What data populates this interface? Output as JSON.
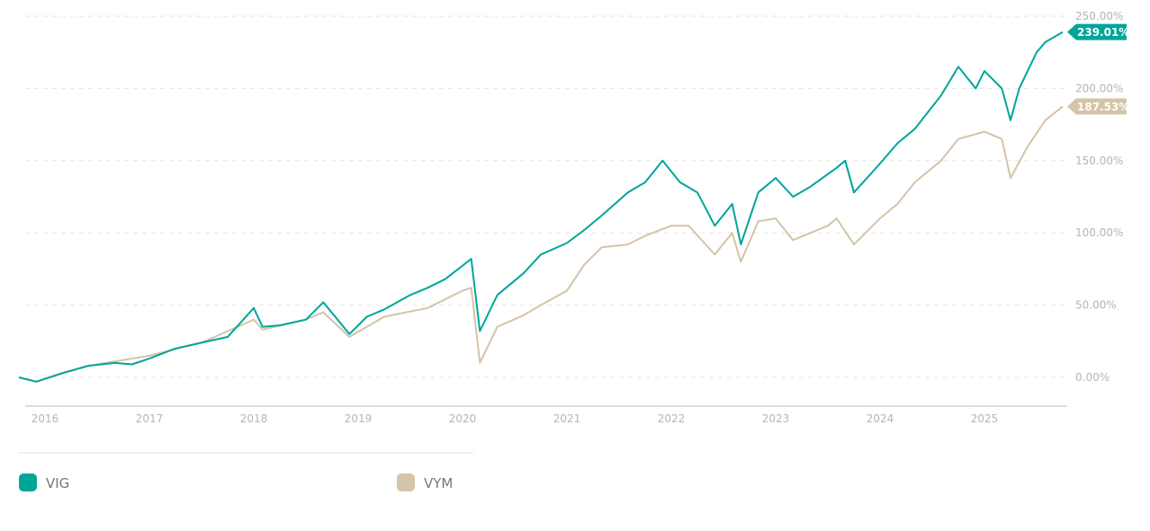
{
  "chart_data": {
    "type": "line",
    "title": "",
    "xlabel": "",
    "ylabel": "",
    "y_unit": "%",
    "ylim": [
      0,
      250
    ],
    "yticks": [
      "0.00%",
      "50.00%",
      "100.00%",
      "150.00%",
      "200.00%",
      "250.00%"
    ],
    "ytick_values": [
      0,
      50,
      100,
      150,
      200,
      250
    ],
    "xticks": [
      "2016",
      "2017",
      "2018",
      "2019",
      "2020",
      "2021",
      "2022",
      "2023",
      "2024",
      "2025"
    ],
    "xlim": [
      "2015-10",
      "2025-10"
    ],
    "grid": "horizontal dashed",
    "legend_position": "bottom",
    "series": [
      {
        "name": "VIG",
        "color": "#00a59a",
        "last_value_label": "239.01%",
        "points": [
          [
            "2015-10",
            0
          ],
          [
            "2015-12",
            -3
          ],
          [
            "2016-03",
            3
          ],
          [
            "2016-06",
            8
          ],
          [
            "2016-09",
            10
          ],
          [
            "2016-11",
            9
          ],
          [
            "2017-01",
            13
          ],
          [
            "2017-04",
            20
          ],
          [
            "2017-07",
            24
          ],
          [
            "2017-10",
            28
          ],
          [
            "2018-01",
            48
          ],
          [
            "2018-02",
            35
          ],
          [
            "2018-04",
            36
          ],
          [
            "2018-07",
            40
          ],
          [
            "2018-09",
            52
          ],
          [
            "2018-12",
            30
          ],
          [
            "2019-02",
            42
          ],
          [
            "2019-04",
            47
          ],
          [
            "2019-07",
            57
          ],
          [
            "2019-09",
            62
          ],
          [
            "2019-11",
            68
          ],
          [
            "2020-02",
            82
          ],
          [
            "2020-03",
            32
          ],
          [
            "2020-05",
            57
          ],
          [
            "2020-08",
            72
          ],
          [
            "2020-10",
            85
          ],
          [
            "2021-01",
            93
          ],
          [
            "2021-03",
            102
          ],
          [
            "2021-05",
            112
          ],
          [
            "2021-08",
            128
          ],
          [
            "2021-10",
            135
          ],
          [
            "2021-12",
            150
          ],
          [
            "2022-02",
            135
          ],
          [
            "2022-04",
            128
          ],
          [
            "2022-06",
            105
          ],
          [
            "2022-08",
            120
          ],
          [
            "2022-09",
            92
          ],
          [
            "2022-11",
            128
          ],
          [
            "2023-01",
            138
          ],
          [
            "2023-03",
            125
          ],
          [
            "2023-05",
            132
          ],
          [
            "2023-08",
            145
          ],
          [
            "2023-09",
            150
          ],
          [
            "2023-10",
            128
          ],
          [
            "2024-01",
            148
          ],
          [
            "2024-03",
            162
          ],
          [
            "2024-05",
            172
          ],
          [
            "2024-08",
            195
          ],
          [
            "2024-10",
            215
          ],
          [
            "2024-12",
            200
          ],
          [
            "2025-01",
            212
          ],
          [
            "2025-03",
            200
          ],
          [
            "2025-04",
            178
          ],
          [
            "2025-05",
            200
          ],
          [
            "2025-07",
            225
          ],
          [
            "2025-08",
            232
          ],
          [
            "2025-10",
            239.01
          ]
        ]
      },
      {
        "name": "VYM",
        "color": "#d4c4a8",
        "last_value_label": "187.53%",
        "points": [
          [
            "2015-10",
            0
          ],
          [
            "2015-12",
            -3
          ],
          [
            "2016-06",
            8
          ],
          [
            "2017-01",
            15
          ],
          [
            "2017-07",
            24
          ],
          [
            "2018-01",
            40
          ],
          [
            "2018-02",
            33
          ],
          [
            "2018-07",
            40
          ],
          [
            "2018-09",
            45
          ],
          [
            "2018-12",
            28
          ],
          [
            "2019-04",
            42
          ],
          [
            "2019-09",
            48
          ],
          [
            "2020-01",
            60
          ],
          [
            "2020-02",
            62
          ],
          [
            "2020-03",
            10
          ],
          [
            "2020-05",
            35
          ],
          [
            "2020-08",
            43
          ],
          [
            "2020-10",
            50
          ],
          [
            "2021-01",
            60
          ],
          [
            "2021-03",
            78
          ],
          [
            "2021-05",
            90
          ],
          [
            "2021-08",
            92
          ],
          [
            "2021-10",
            98
          ],
          [
            "2022-01",
            105
          ],
          [
            "2022-03",
            105
          ],
          [
            "2022-06",
            85
          ],
          [
            "2022-08",
            100
          ],
          [
            "2022-09",
            80
          ],
          [
            "2022-11",
            108
          ],
          [
            "2023-01",
            110
          ],
          [
            "2023-03",
            95
          ],
          [
            "2023-07",
            105
          ],
          [
            "2023-08",
            110
          ],
          [
            "2023-10",
            92
          ],
          [
            "2024-01",
            110
          ],
          [
            "2024-03",
            120
          ],
          [
            "2024-05",
            135
          ],
          [
            "2024-08",
            150
          ],
          [
            "2024-10",
            165
          ],
          [
            "2025-01",
            170
          ],
          [
            "2025-03",
            165
          ],
          [
            "2025-04",
            138
          ],
          [
            "2025-06",
            160
          ],
          [
            "2025-08",
            178
          ],
          [
            "2025-10",
            187.53
          ]
        ]
      }
    ]
  }
}
